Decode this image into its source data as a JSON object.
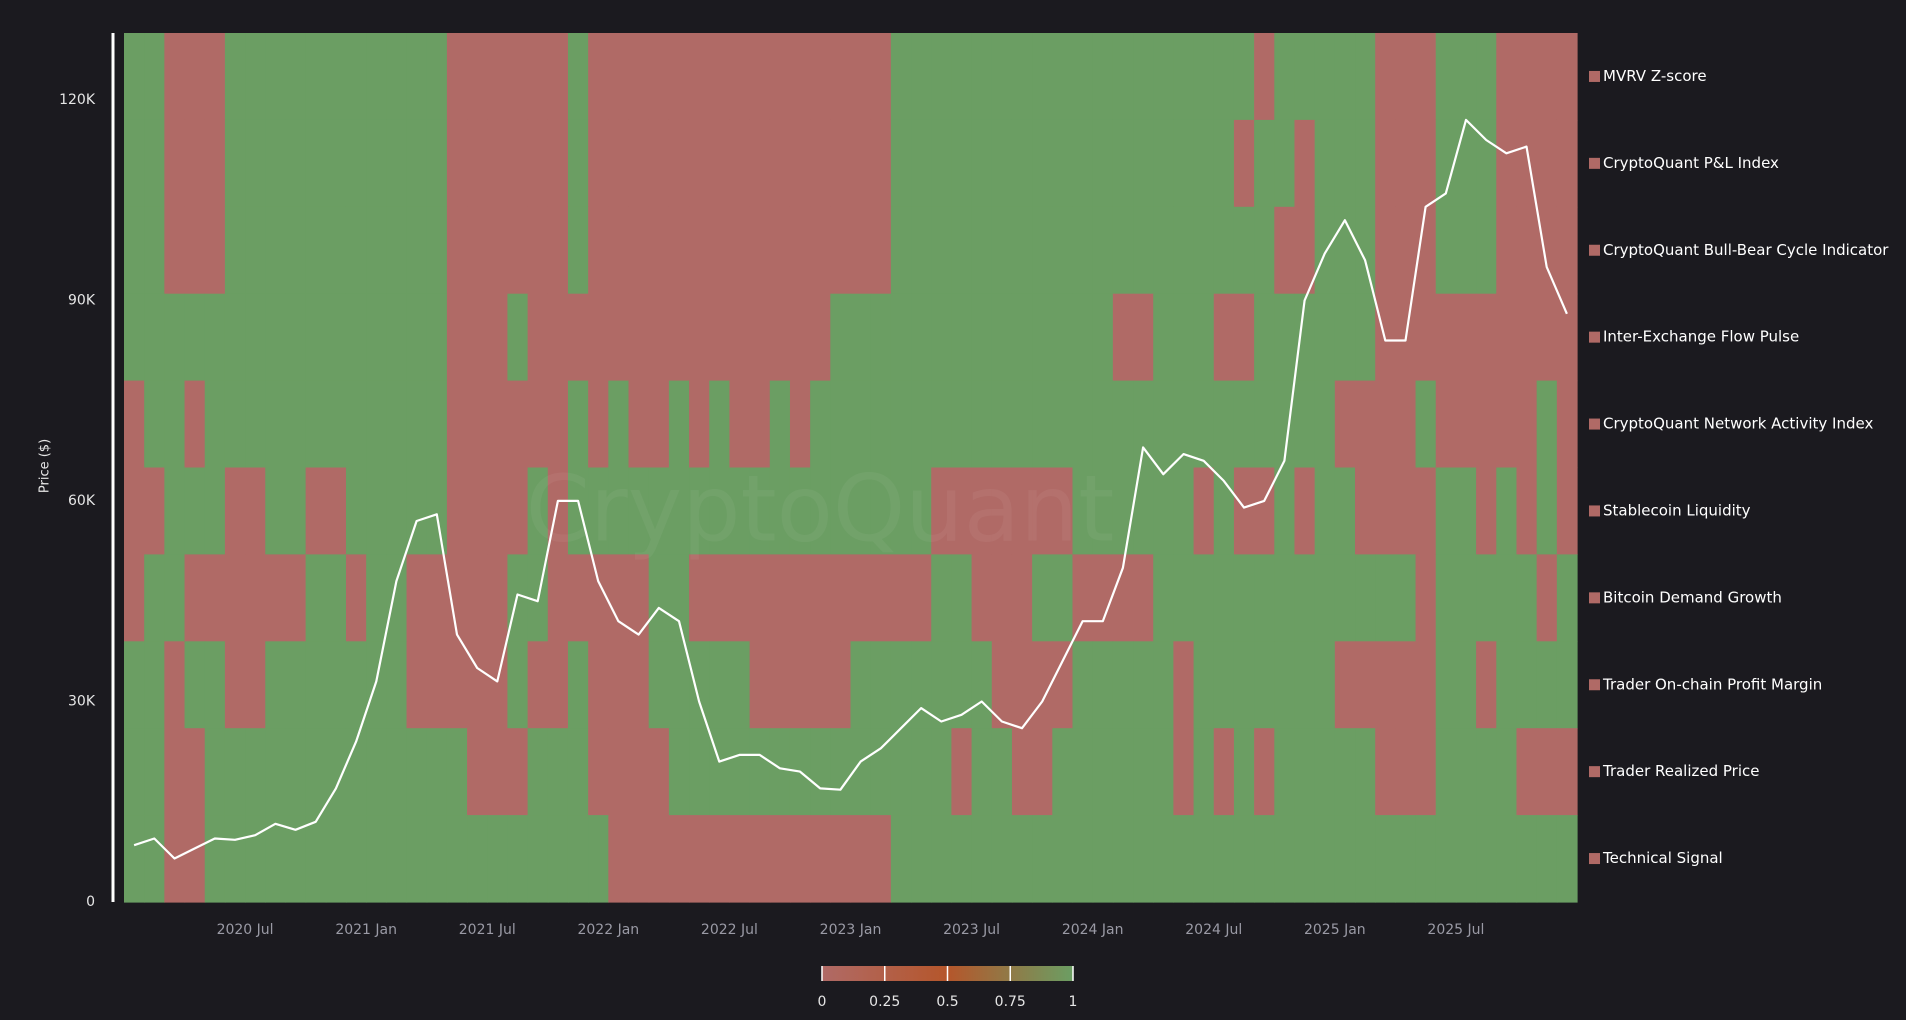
{
  "chart_data": {
    "type": "heatmap",
    "watermark": "CryptoQuant",
    "y_label": "Price ($)",
    "ylim": [
      0,
      130000
    ],
    "yticks": [
      0,
      {
        "value": 30000,
        "label": "30K"
      },
      {
        "value": 60000,
        "label": "60K"
      },
      {
        "value": 90000,
        "label": "90K"
      },
      {
        "value": 120000,
        "label": "120K"
      }
    ],
    "x": [
      "2020 Jan",
      "2020 Feb",
      "2020 Mar",
      "2020 Apr",
      "2020 May",
      "2020 Jun",
      "2020 Jul",
      "2020 Aug",
      "2020 Sep",
      "2020 Oct",
      "2020 Nov",
      "2020 Dec",
      "2021 Jan",
      "2021 Feb",
      "2021 Mar",
      "2021 Apr",
      "2021 May",
      "2021 Jun",
      "2021 Jul",
      "2021 Aug",
      "2021 Sep",
      "2021 Oct",
      "2021 Nov",
      "2021 Dec",
      "2022 Jan",
      "2022 Feb",
      "2022 Mar",
      "2022 Apr",
      "2022 May",
      "2022 Jun",
      "2022 Jul",
      "2022 Aug",
      "2022 Sep",
      "2022 Oct",
      "2022 Nov",
      "2022 Dec",
      "2023 Jan",
      "2023 Feb",
      "2023 Mar",
      "2023 Apr",
      "2023 May",
      "2023 Jun",
      "2023 Jul",
      "2023 Aug",
      "2023 Sep",
      "2023 Oct",
      "2023 Nov",
      "2023 Dec",
      "2024 Jan",
      "2024 Feb",
      "2024 Mar",
      "2024 Apr",
      "2024 May",
      "2024 Jun",
      "2024 Jul",
      "2024 Aug",
      "2024 Sep",
      "2024 Oct",
      "2024 Nov",
      "2024 Dec",
      "2025 Jan",
      "2025 Feb",
      "2025 Mar",
      "2025 Apr",
      "2025 May",
      "2025 Jun",
      "2025 Jul",
      "2025 Aug",
      "2025 Sep",
      "2025 Oct",
      "2025 Nov",
      "2025 Dec"
    ],
    "xticks": [
      "2020 Jul",
      "2021 Jan",
      "2021 Jul",
      "2022 Jan",
      "2022 Jul",
      "2023 Jan",
      "2023 Jul",
      "2024 Jan",
      "2024 Jul",
      "2025 Jan",
      "2025 Jul"
    ],
    "colorscale": {
      "stops": [
        [
          0,
          "#b06a66"
        ],
        [
          0.5,
          "#b5562b"
        ],
        [
          1,
          "#6b9e63"
        ]
      ],
      "range": [
        0,
        1
      ],
      "ticks": [
        0,
        0.25,
        0.5,
        0.75,
        1
      ]
    },
    "series": [
      {
        "name": "MVRV Z-score",
        "color": "#b06a66",
        "values": [
          1,
          1,
          0,
          0,
          0,
          1,
          1,
          1,
          1,
          1,
          1,
          1,
          1,
          1,
          1,
          1,
          0,
          0,
          0,
          0,
          0,
          0,
          1,
          0,
          0,
          0,
          0,
          0,
          0,
          0,
          0,
          0,
          0,
          0,
          0,
          0,
          0,
          0,
          1,
          1,
          1,
          1,
          1,
          1,
          1,
          1,
          1,
          1,
          1,
          1,
          1,
          1,
          1,
          1,
          1,
          1,
          0,
          1,
          1,
          1,
          1,
          1,
          0,
          0,
          0,
          1,
          1,
          1,
          0,
          0,
          0,
          0
        ]
      },
      {
        "name": "CryptoQuant P&L Index",
        "color": "#b06a66",
        "values": [
          1,
          1,
          0,
          0,
          0,
          1,
          1,
          1,
          1,
          1,
          1,
          1,
          1,
          1,
          1,
          1,
          0,
          0,
          0,
          0,
          0,
          0,
          1,
          0,
          0,
          0,
          0,
          0,
          0,
          0,
          0,
          0,
          0,
          0,
          0,
          0,
          0,
          0,
          1,
          1,
          1,
          1,
          1,
          1,
          1,
          1,
          1,
          1,
          1,
          1,
          1,
          1,
          1,
          1,
          1,
          0,
          1,
          1,
          0,
          1,
          1,
          1,
          0,
          0,
          0,
          1,
          1,
          1,
          0,
          0,
          0,
          0
        ]
      },
      {
        "name": "CryptoQuant Bull-Bear Cycle Indicator",
        "color": "#b06a66",
        "values": [
          1,
          1,
          0,
          0,
          0,
          1,
          1,
          1,
          1,
          1,
          1,
          1,
          1,
          1,
          1,
          1,
          0,
          0,
          0,
          0,
          0,
          0,
          1,
          0,
          0,
          0,
          0,
          0,
          0,
          0,
          0,
          0,
          0,
          0,
          0,
          0,
          0,
          0,
          1,
          1,
          1,
          1,
          1,
          1,
          1,
          1,
          1,
          1,
          1,
          1,
          1,
          1,
          1,
          1,
          1,
          1,
          1,
          0,
          0,
          1,
          1,
          1,
          0,
          0,
          0,
          1,
          1,
          1,
          0,
          0,
          0,
          0
        ]
      },
      {
        "name": "Inter-Exchange Flow Pulse",
        "color": "#b06a66",
        "values": [
          1,
          1,
          1,
          1,
          1,
          1,
          1,
          1,
          1,
          1,
          1,
          1,
          1,
          1,
          1,
          1,
          0,
          0,
          0,
          1,
          0,
          0,
          0,
          0,
          0,
          0,
          0,
          0,
          0,
          0,
          0,
          0,
          0,
          0,
          0,
          1,
          1,
          1,
          1,
          1,
          1,
          1,
          1,
          1,
          1,
          1,
          1,
          1,
          1,
          0,
          0,
          1,
          1,
          1,
          0,
          0,
          1,
          1,
          1,
          1,
          1,
          1,
          0,
          0,
          0,
          0,
          0,
          0,
          0,
          0,
          0,
          0
        ]
      },
      {
        "name": "CryptoQuant Network Activity Index",
        "color": "#b06a66",
        "values": [
          0,
          1,
          1,
          0,
          1,
          1,
          1,
          1,
          1,
          1,
          1,
          1,
          1,
          1,
          1,
          1,
          0,
          0,
          0,
          0,
          0,
          0,
          1,
          0,
          1,
          0,
          0,
          1,
          0,
          1,
          0,
          0,
          1,
          0,
          1,
          1,
          1,
          1,
          1,
          1,
          1,
          1,
          1,
          1,
          1,
          1,
          1,
          1,
          1,
          1,
          1,
          1,
          1,
          1,
          1,
          1,
          1,
          1,
          1,
          1,
          0,
          0,
          0,
          0,
          1,
          0,
          0,
          0,
          0,
          0,
          1,
          0
        ]
      },
      {
        "name": "Stablecoin Liquidity",
        "color": "#b06a66",
        "values": [
          0,
          0,
          1,
          1,
          1,
          0,
          0,
          1,
          1,
          0,
          0,
          1,
          1,
          1,
          1,
          1,
          0,
          0,
          0,
          0,
          1,
          0,
          1,
          1,
          1,
          1,
          1,
          1,
          1,
          1,
          1,
          1,
          1,
          1,
          1,
          1,
          1,
          1,
          1,
          1,
          0,
          0,
          0,
          0,
          0,
          0,
          0,
          1,
          1,
          1,
          1,
          1,
          1,
          0,
          1,
          0,
          0,
          1,
          0,
          1,
          1,
          0,
          0,
          0,
          0,
          1,
          1,
          0,
          1,
          0,
          1,
          0
        ]
      },
      {
        "name": "Bitcoin Demand Growth",
        "color": "#b06a66",
        "values": [
          0,
          1,
          1,
          0,
          0,
          0,
          0,
          0,
          0,
          1,
          1,
          0,
          1,
          1,
          0,
          0,
          0,
          0,
          0,
          1,
          1,
          0,
          0,
          0,
          0,
          0,
          1,
          1,
          0,
          0,
          0,
          0,
          0,
          0,
          0,
          0,
          0,
          0,
          0,
          0,
          1,
          1,
          0,
          0,
          0,
          1,
          1,
          0,
          0,
          0,
          0,
          1,
          1,
          1,
          1,
          1,
          1,
          1,
          1,
          1,
          1,
          1,
          1,
          1,
          0,
          1,
          1,
          1,
          1,
          1,
          0,
          1
        ]
      },
      {
        "name": "Trader On-chain Profit Margin",
        "color": "#b06a66",
        "values": [
          1,
          1,
          0,
          1,
          1,
          0,
          0,
          1,
          1,
          1,
          1,
          1,
          1,
          1,
          0,
          0,
          0,
          0,
          0,
          1,
          0,
          0,
          1,
          0,
          0,
          0,
          1,
          1,
          1,
          1,
          1,
          0,
          0,
          0,
          0,
          0,
          1,
          1,
          1,
          1,
          1,
          1,
          1,
          0,
          0,
          0,
          0,
          1,
          1,
          1,
          1,
          1,
          0,
          1,
          1,
          1,
          1,
          1,
          1,
          1,
          0,
          0,
          0,
          0,
          0,
          1,
          1,
          0,
          1,
          1,
          1,
          1
        ]
      },
      {
        "name": "Trader Realized Price",
        "color": "#b06a66",
        "values": [
          1,
          1,
          0,
          0,
          1,
          1,
          1,
          1,
          1,
          1,
          1,
          1,
          1,
          1,
          1,
          1,
          1,
          0,
          0,
          0,
          1,
          1,
          1,
          0,
          0,
          0,
          0,
          1,
          1,
          1,
          1,
          1,
          1,
          1,
          1,
          1,
          1,
          1,
          1,
          1,
          1,
          0,
          1,
          1,
          0,
          0,
          1,
          1,
          1,
          1,
          1,
          1,
          0,
          1,
          0,
          1,
          0,
          1,
          1,
          1,
          1,
          1,
          0,
          0,
          0,
          1,
          1,
          1,
          1,
          0,
          0,
          0
        ]
      },
      {
        "name": "Technical Signal",
        "color": "#b06a66",
        "values": [
          1,
          1,
          0,
          0,
          1,
          1,
          1,
          1,
          1,
          1,
          1,
          1,
          1,
          1,
          1,
          1,
          1,
          1,
          1,
          1,
          1,
          1,
          1,
          1,
          0,
          0,
          0,
          0,
          0,
          0,
          0,
          0,
          0,
          0,
          0,
          0,
          0,
          0,
          1,
          1,
          1,
          1,
          1,
          1,
          1,
          1,
          1,
          1,
          1,
          1,
          1,
          1,
          1,
          1,
          1,
          1,
          1,
          1,
          1,
          1,
          1,
          1,
          1,
          1,
          1,
          1,
          1,
          1,
          1,
          1,
          1,
          1
        ]
      }
    ],
    "price": {
      "color": "#ffffff",
      "values": [
        8500,
        9500,
        6500,
        8000,
        9500,
        9300,
        10000,
        11700,
        10800,
        12000,
        17000,
        24000,
        33000,
        48000,
        57000,
        58000,
        40000,
        35000,
        33000,
        46000,
        45000,
        60000,
        60000,
        48000,
        42000,
        40000,
        44000,
        42000,
        30000,
        21000,
        22000,
        22000,
        20000,
        19500,
        17000,
        16800,
        21000,
        23000,
        26000,
        29000,
        27000,
        28000,
        30000,
        27000,
        26000,
        30000,
        36000,
        42000,
        42000,
        50000,
        68000,
        64000,
        67000,
        66000,
        63000,
        59000,
        60000,
        66000,
        90000,
        97000,
        102000,
        96000,
        84000,
        84000,
        104000,
        106000,
        117000,
        114000,
        112000,
        113000,
        95000,
        88000
      ]
    }
  }
}
